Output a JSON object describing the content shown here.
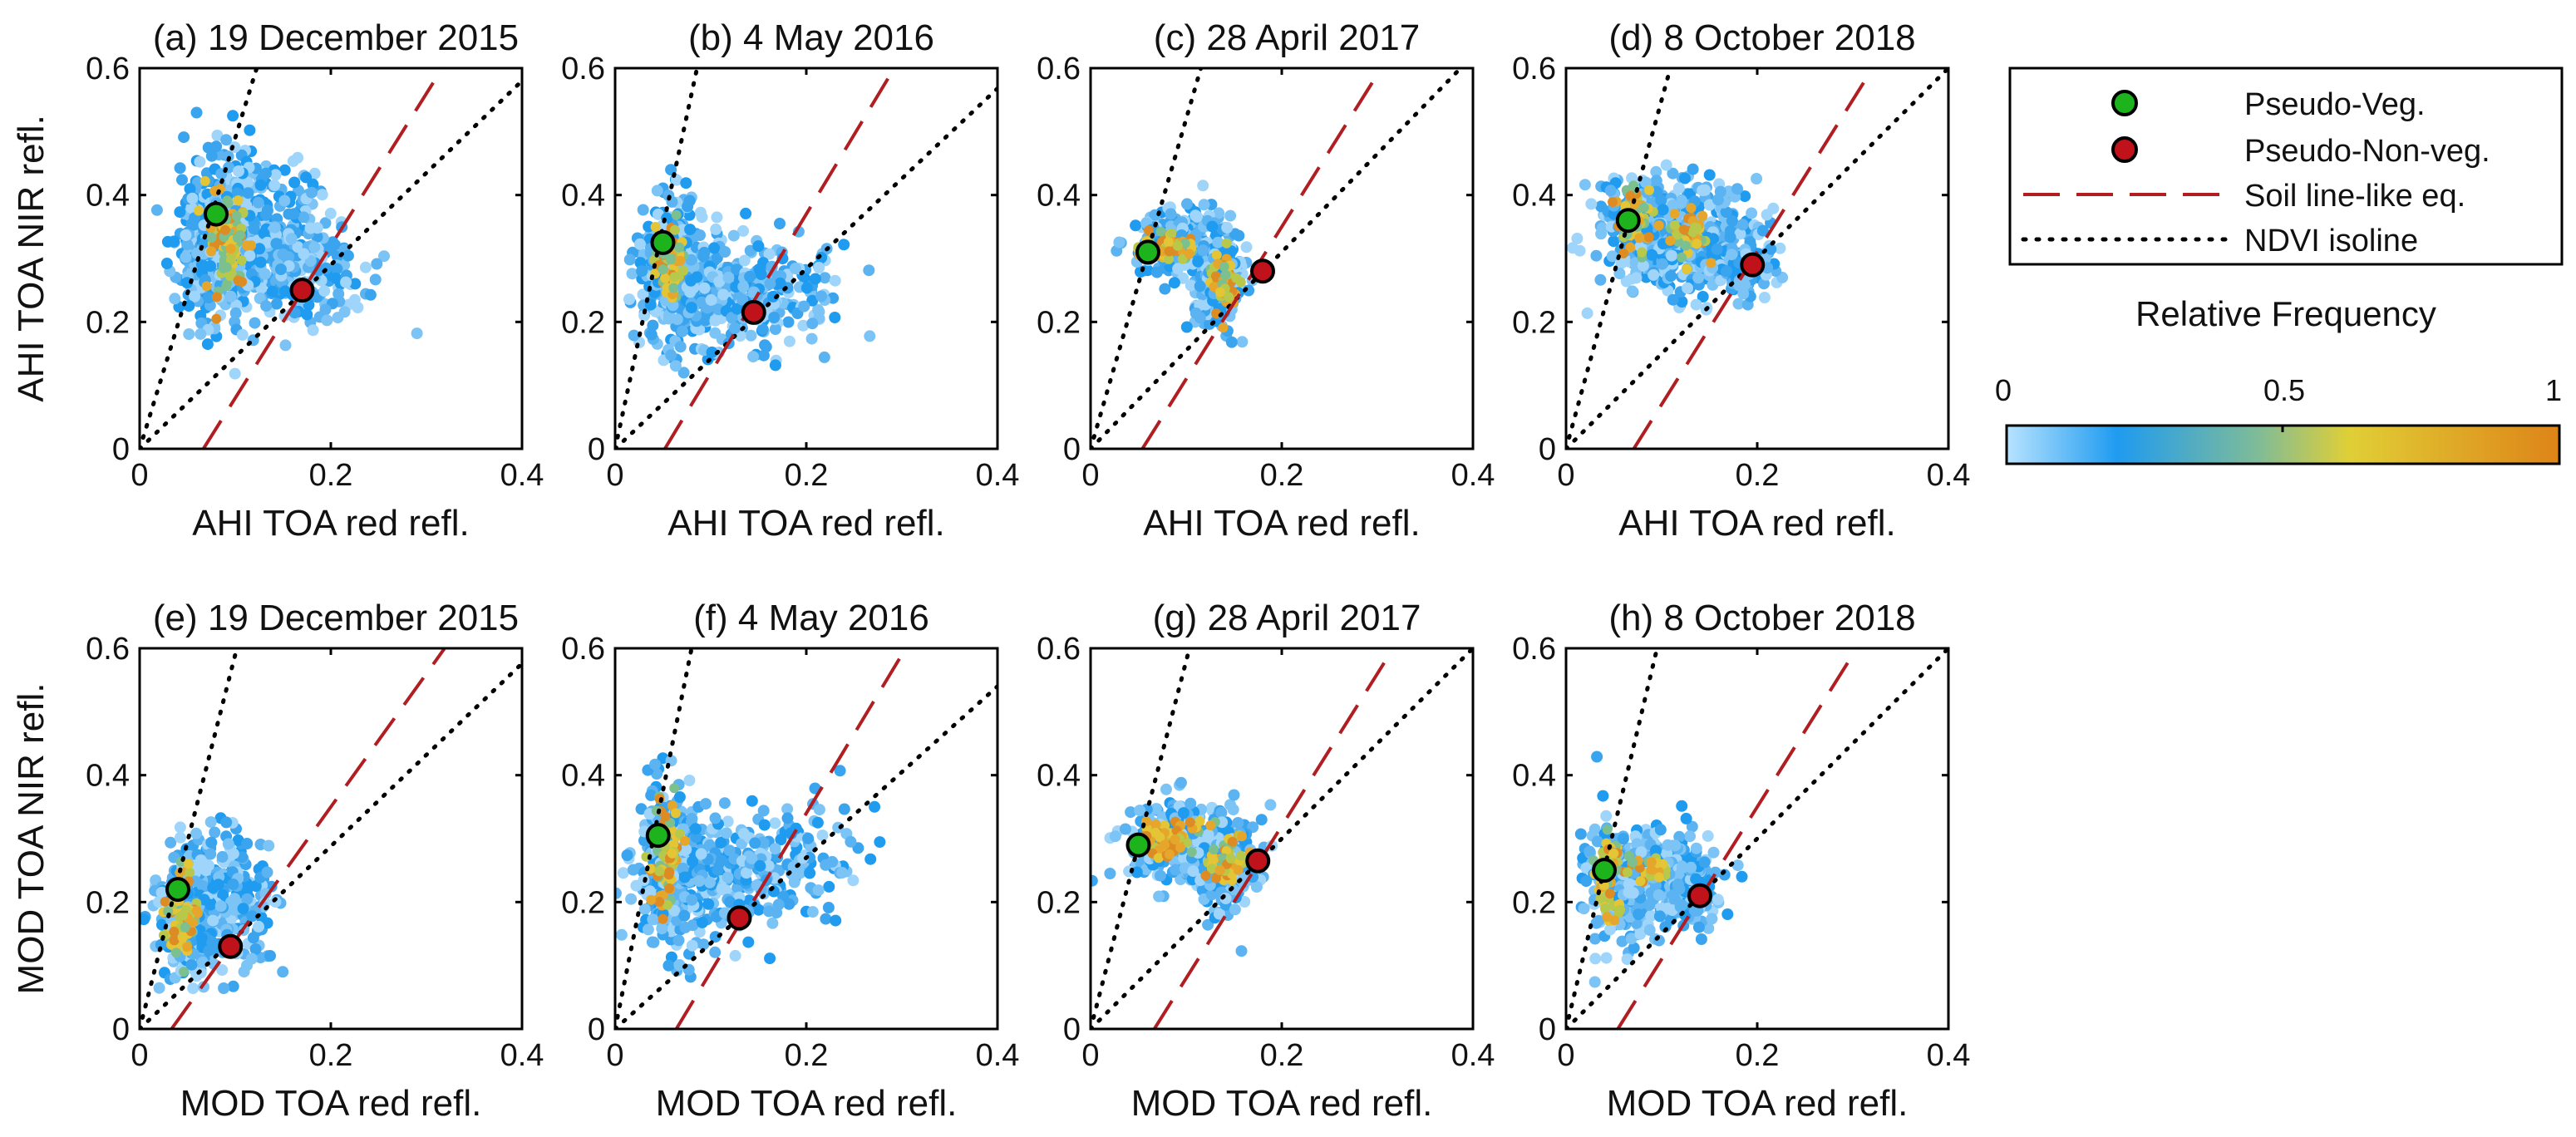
{
  "chart_data": [
    {
      "type": "scatter",
      "panel": "(a)",
      "title": "(a) 19 December 2015",
      "xlabel": "AHI TOA red refl.",
      "ylabel": "AHI TOA NIR refl.",
      "xlim": [
        0,
        0.4
      ],
      "ylim": [
        0,
        0.6
      ],
      "xticks": [
        "0",
        "0.2",
        "0.4"
      ],
      "yticks": [
        "0",
        "0.2",
        "0.4",
        "0.6"
      ],
      "pseudo_veg": {
        "x": 0.08,
        "y": 0.37
      },
      "pseudo_nonveg": {
        "x": 0.17,
        "y": 0.25
      },
      "soil_line": {
        "slope": 2.4,
        "intercept": -0.16
      },
      "ndvi_isolines": [
        {
          "slope": 4.9
        },
        {
          "slope": 1.45
        }
      ],
      "density": [
        {
          "x": 0.075,
          "y": 0.32,
          "sx": 0.015,
          "sy": 0.06,
          "n": 260
        },
        {
          "x": 0.12,
          "y": 0.35,
          "sx": 0.04,
          "sy": 0.06,
          "n": 320
        },
        {
          "x": 0.17,
          "y": 0.28,
          "sx": 0.035,
          "sy": 0.04,
          "n": 180
        }
      ],
      "hot": [
        {
          "x": 0.09,
          "y": 0.33,
          "sx": 0.012,
          "sy": 0.04,
          "n": 80
        }
      ]
    },
    {
      "type": "scatter",
      "panel": "(b)",
      "title": "(b) 4 May 2016",
      "xlabel": "AHI TOA red refl.",
      "ylabel": "",
      "xlim": [
        0,
        0.4
      ],
      "ylim": [
        0,
        0.6
      ],
      "xticks": [
        "0",
        "0.2",
        "0.4"
      ],
      "yticks": [
        "0",
        "0.2",
        "0.4",
        "0.6"
      ],
      "pseudo_veg": {
        "x": 0.05,
        "y": 0.325
      },
      "pseudo_nonveg": {
        "x": 0.145,
        "y": 0.215
      },
      "soil_line": {
        "slope": 2.5,
        "intercept": -0.13
      },
      "ndvi_isolines": [
        {
          "slope": 7.0
        },
        {
          "slope": 1.42
        }
      ],
      "density": [
        {
          "x": 0.06,
          "y": 0.28,
          "sx": 0.015,
          "sy": 0.06,
          "n": 260
        },
        {
          "x": 0.11,
          "y": 0.25,
          "sx": 0.04,
          "sy": 0.045,
          "n": 320
        },
        {
          "x": 0.18,
          "y": 0.25,
          "sx": 0.03,
          "sy": 0.04,
          "n": 100
        }
      ],
      "hot": [
        {
          "x": 0.058,
          "y": 0.29,
          "sx": 0.008,
          "sy": 0.03,
          "n": 70
        }
      ]
    },
    {
      "type": "scatter",
      "panel": "(c)",
      "title": "(c) 28 April 2017",
      "xlabel": "AHI TOA red refl.",
      "ylabel": "",
      "xlim": [
        0,
        0.4
      ],
      "ylim": [
        0,
        0.6
      ],
      "xticks": [
        "0",
        "0.2",
        "0.4"
      ],
      "yticks": [
        "0",
        "0.2",
        "0.4",
        "0.6"
      ],
      "pseudo_veg": {
        "x": 0.06,
        "y": 0.31
      },
      "pseudo_nonveg": {
        "x": 0.18,
        "y": 0.28
      },
      "soil_line": {
        "slope": 2.4,
        "intercept": -0.13
      },
      "ndvi_isolines": [
        {
          "slope": 5.2
        },
        {
          "slope": 1.55
        }
      ],
      "density": [
        {
          "x": 0.09,
          "y": 0.32,
          "sx": 0.02,
          "sy": 0.025,
          "n": 220
        },
        {
          "x": 0.135,
          "y": 0.27,
          "sx": 0.015,
          "sy": 0.04,
          "n": 230
        }
      ],
      "hot": [
        {
          "x": 0.08,
          "y": 0.32,
          "sx": 0.012,
          "sy": 0.012,
          "n": 60
        },
        {
          "x": 0.14,
          "y": 0.26,
          "sx": 0.008,
          "sy": 0.025,
          "n": 50
        }
      ]
    },
    {
      "type": "scatter",
      "panel": "(d)",
      "title": "(d) 8 October 2018",
      "xlabel": "AHI TOA red refl.",
      "ylabel": "",
      "xlim": [
        0,
        0.4
      ],
      "ylim": [
        0,
        0.6
      ],
      "xticks": [
        "0",
        "0.2",
        "0.4"
      ],
      "yticks": [
        "0",
        "0.2",
        "0.4",
        "0.6"
      ],
      "pseudo_veg": {
        "x": 0.065,
        "y": 0.36
      },
      "pseudo_nonveg": {
        "x": 0.195,
        "y": 0.29
      },
      "soil_line": {
        "slope": 2.4,
        "intercept": -0.17
      },
      "ndvi_isolines": [
        {
          "slope": 5.5
        },
        {
          "slope": 1.5
        }
      ],
      "density": [
        {
          "x": 0.08,
          "y": 0.35,
          "sx": 0.02,
          "sy": 0.04,
          "n": 220
        },
        {
          "x": 0.13,
          "y": 0.33,
          "sx": 0.035,
          "sy": 0.045,
          "n": 320
        },
        {
          "x": 0.18,
          "y": 0.29,
          "sx": 0.02,
          "sy": 0.025,
          "n": 120
        }
      ],
      "hot": [
        {
          "x": 0.07,
          "y": 0.36,
          "sx": 0.008,
          "sy": 0.03,
          "n": 60
        },
        {
          "x": 0.13,
          "y": 0.33,
          "sx": 0.015,
          "sy": 0.02,
          "n": 40
        }
      ]
    },
    {
      "type": "scatter",
      "panel": "(e)",
      "title": "(e) 19 December 2015",
      "xlabel": "MOD TOA red refl.",
      "ylabel": "MOD TOA NIR refl.",
      "xlim": [
        0,
        0.4
      ],
      "ylim": [
        0,
        0.6
      ],
      "xticks": [
        "0",
        "0.2",
        "0.4"
      ],
      "yticks": [
        "0",
        "0.2",
        "0.4",
        "0.6"
      ],
      "pseudo_veg": {
        "x": 0.04,
        "y": 0.22
      },
      "pseudo_nonveg": {
        "x": 0.095,
        "y": 0.13
      },
      "soil_line": {
        "slope": 2.1,
        "intercept": -0.07
      },
      "ndvi_isolines": [
        {
          "slope": 5.9
        },
        {
          "slope": 1.44
        }
      ],
      "density": [
        {
          "x": 0.055,
          "y": 0.18,
          "sx": 0.02,
          "sy": 0.05,
          "n": 280
        },
        {
          "x": 0.1,
          "y": 0.2,
          "sx": 0.025,
          "sy": 0.06,
          "n": 160
        }
      ],
      "hot": [
        {
          "x": 0.045,
          "y": 0.17,
          "sx": 0.01,
          "sy": 0.04,
          "n": 70
        }
      ]
    },
    {
      "type": "scatter",
      "panel": "(f)",
      "title": "(f) 4 May 2016",
      "xlabel": "MOD TOA red refl.",
      "ylabel": "",
      "xlim": [
        0,
        0.4
      ],
      "ylim": [
        0,
        0.6
      ],
      "xticks": [
        "0",
        "0.2",
        "0.4"
      ],
      "yticks": [
        "0",
        "0.2",
        "0.4",
        "0.6"
      ],
      "pseudo_veg": {
        "x": 0.045,
        "y": 0.305
      },
      "pseudo_nonveg": {
        "x": 0.13,
        "y": 0.175
      },
      "soil_line": {
        "slope": 2.5,
        "intercept": -0.16
      },
      "ndvi_isolines": [
        {
          "slope": 7.5
        },
        {
          "slope": 1.35
        }
      ],
      "density": [
        {
          "x": 0.055,
          "y": 0.26,
          "sx": 0.015,
          "sy": 0.06,
          "n": 260
        },
        {
          "x": 0.11,
          "y": 0.24,
          "sx": 0.04,
          "sy": 0.05,
          "n": 300
        },
        {
          "x": 0.19,
          "y": 0.28,
          "sx": 0.035,
          "sy": 0.05,
          "n": 90
        }
      ],
      "hot": [
        {
          "x": 0.052,
          "y": 0.27,
          "sx": 0.008,
          "sy": 0.04,
          "n": 70
        }
      ]
    },
    {
      "type": "scatter",
      "panel": "(g)",
      "title": "(g) 28 April 2017",
      "xlabel": "MOD TOA red refl.",
      "ylabel": "",
      "xlim": [
        0,
        0.4
      ],
      "ylim": [
        0,
        0.6
      ],
      "xticks": [
        "0",
        "0.2",
        "0.4"
      ],
      "yticks": [
        "0",
        "0.2",
        "0.4",
        "0.6"
      ],
      "pseudo_veg": {
        "x": 0.05,
        "y": 0.29
      },
      "pseudo_nonveg": {
        "x": 0.175,
        "y": 0.265
      },
      "soil_line": {
        "slope": 2.4,
        "intercept": -0.16
      },
      "ndvi_isolines": [
        {
          "slope": 5.8
        },
        {
          "slope": 1.5
        }
      ],
      "density": [
        {
          "x": 0.09,
          "y": 0.3,
          "sx": 0.025,
          "sy": 0.03,
          "n": 240
        },
        {
          "x": 0.14,
          "y": 0.26,
          "sx": 0.018,
          "sy": 0.04,
          "n": 230
        }
      ],
      "hot": [
        {
          "x": 0.08,
          "y": 0.3,
          "sx": 0.015,
          "sy": 0.015,
          "n": 60
        },
        {
          "x": 0.14,
          "y": 0.27,
          "sx": 0.01,
          "sy": 0.02,
          "n": 50
        }
      ]
    },
    {
      "type": "scatter",
      "panel": "(h)",
      "title": "(h) 8 October 2018",
      "xlabel": "MOD TOA red refl.",
      "ylabel": "",
      "xlim": [
        0,
        0.4
      ],
      "ylim": [
        0,
        0.6
      ],
      "xticks": [
        "0",
        "0.2",
        "0.4"
      ],
      "yticks": [
        "0",
        "0.2",
        "0.4",
        "0.6"
      ],
      "pseudo_veg": {
        "x": 0.04,
        "y": 0.25
      },
      "pseudo_nonveg": {
        "x": 0.14,
        "y": 0.21
      },
      "soil_line": {
        "slope": 2.4,
        "intercept": -0.13
      },
      "ndvi_isolines": [
        {
          "slope": 6.3
        },
        {
          "slope": 1.5
        }
      ],
      "density": [
        {
          "x": 0.06,
          "y": 0.24,
          "sx": 0.02,
          "sy": 0.05,
          "n": 230
        },
        {
          "x": 0.1,
          "y": 0.24,
          "sx": 0.025,
          "sy": 0.035,
          "n": 220
        },
        {
          "x": 0.13,
          "y": 0.22,
          "sx": 0.015,
          "sy": 0.03,
          "n": 120
        }
      ],
      "hot": [
        {
          "x": 0.045,
          "y": 0.24,
          "sx": 0.008,
          "sy": 0.03,
          "n": 60
        },
        {
          "x": 0.09,
          "y": 0.25,
          "sx": 0.012,
          "sy": 0.012,
          "n": 30
        }
      ]
    }
  ],
  "legend": {
    "entries": [
      {
        "label": "Pseudo-Veg.",
        "kind": "marker",
        "color": "#1db31d"
      },
      {
        "label": "Pseudo-Non-veg.",
        "kind": "marker",
        "color": "#c0121b"
      },
      {
        "label": "Soil line-like eq.",
        "kind": "dashed",
        "color": "#b01e22"
      },
      {
        "label": "NDVI isoline",
        "kind": "dotted",
        "color": "#000000"
      }
    ],
    "placement": "top-right"
  },
  "colorbar": {
    "title": "Relative Frequency",
    "ticks": [
      "0",
      "0.5",
      "1"
    ],
    "colors": [
      "#b7e3ff",
      "#1f9bf0",
      "#e0cf36",
      "#de8418"
    ]
  }
}
